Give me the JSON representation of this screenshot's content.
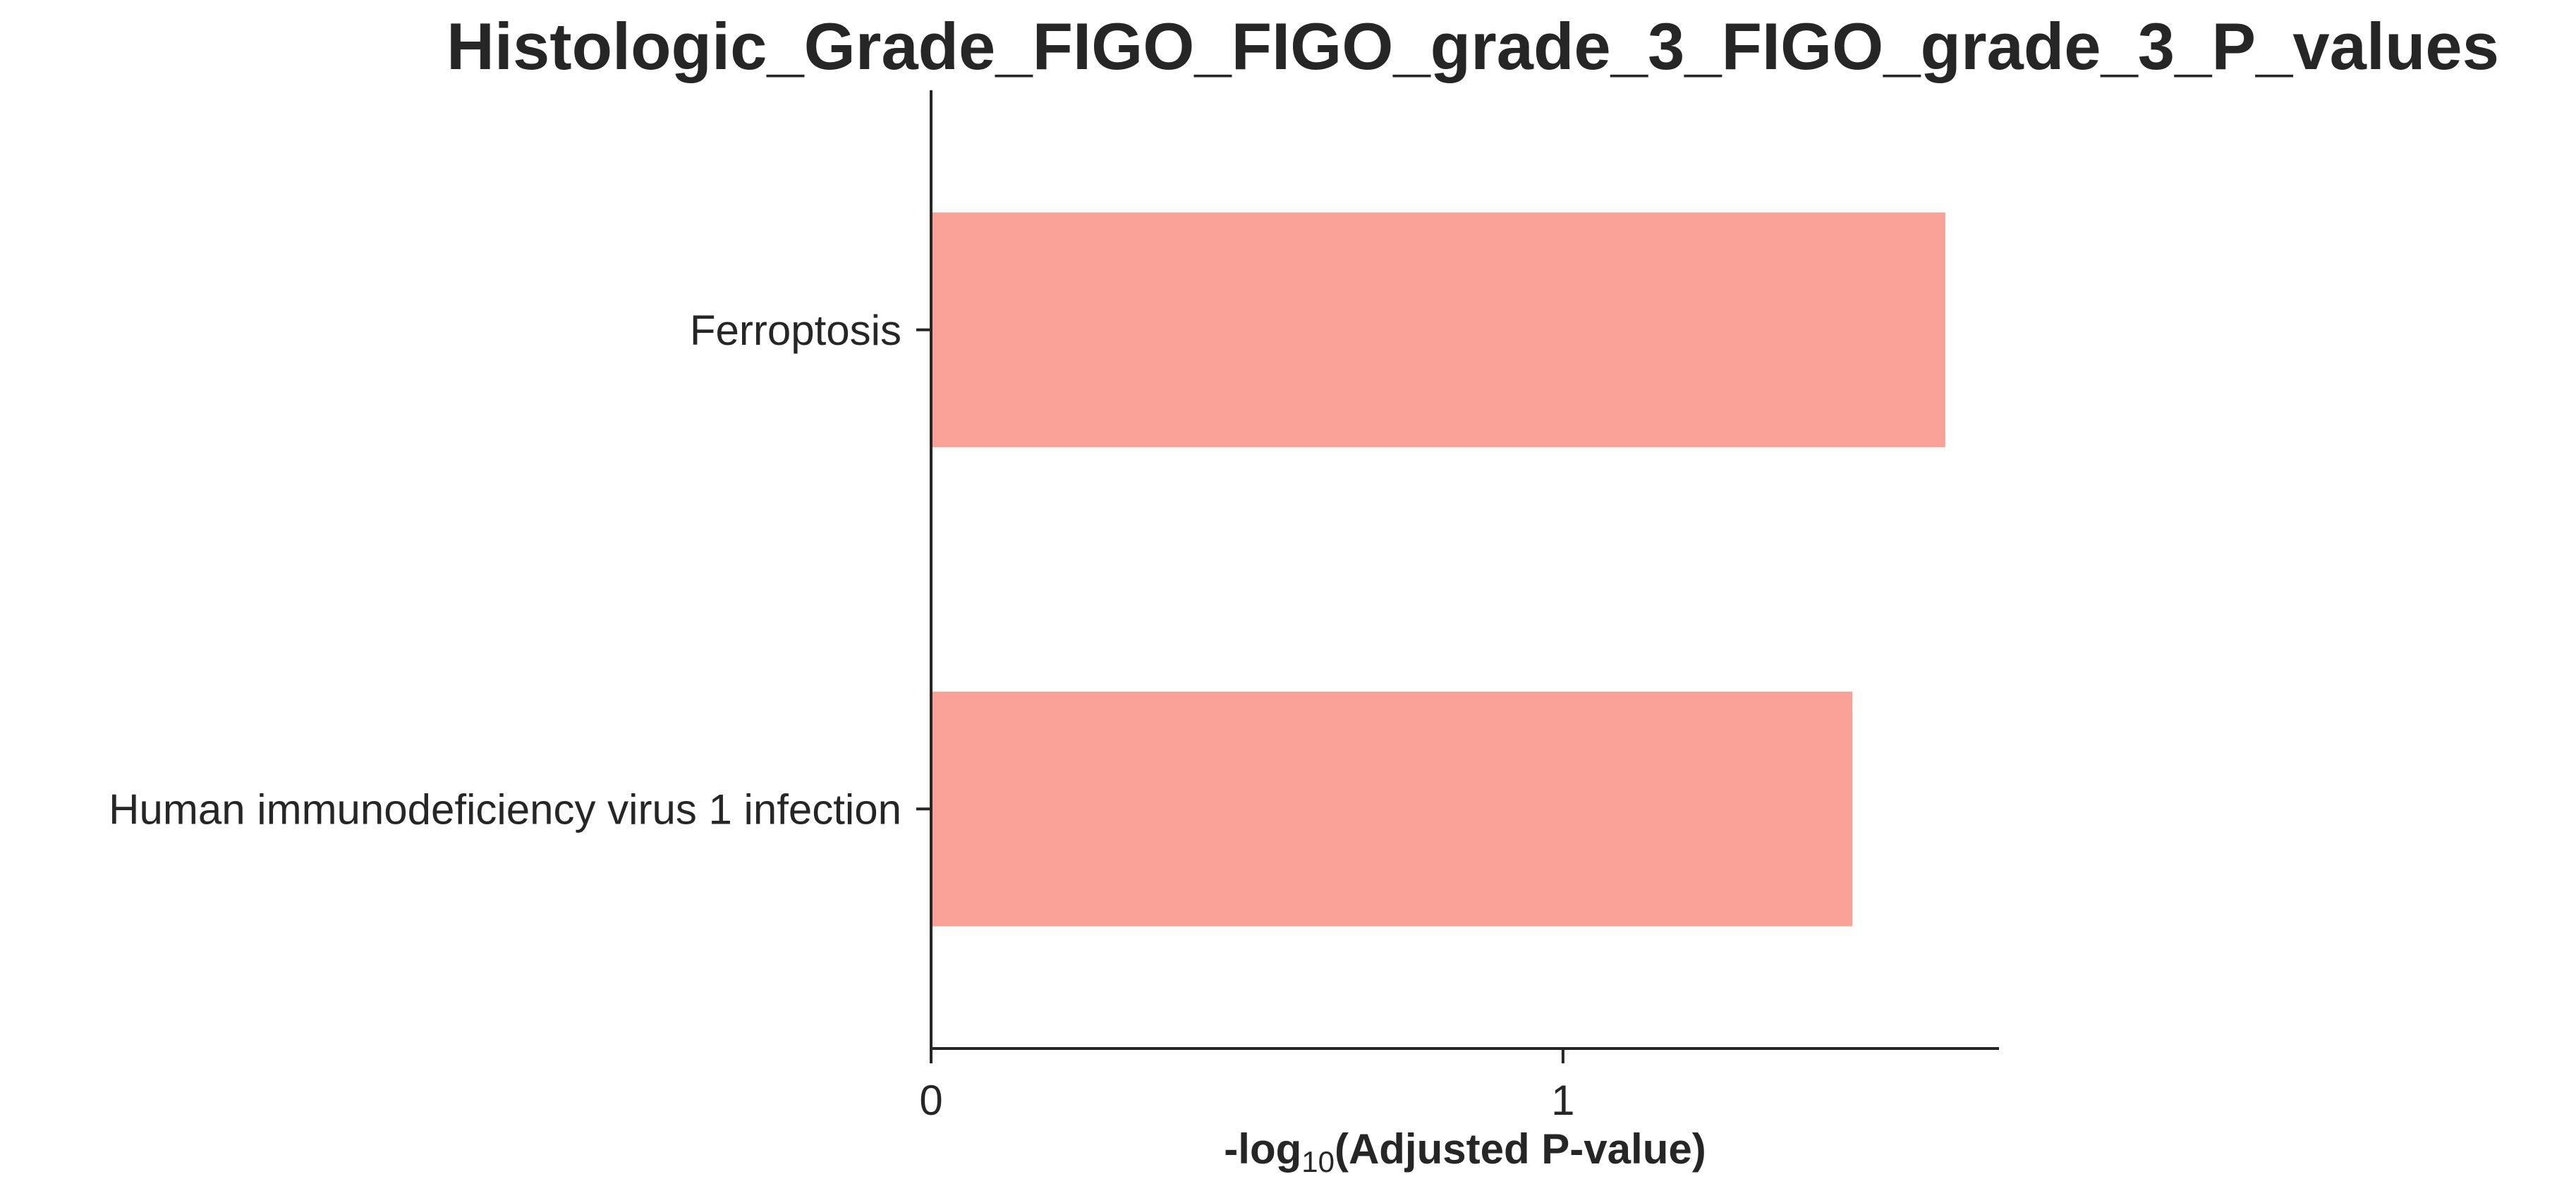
{
  "chart_data": {
    "type": "bar",
    "orientation": "horizontal",
    "title": "Histologic_Grade_FIGO_FIGO_grade_3_FIGO_grade_3_P_values",
    "xlabel_prefix": "-log",
    "xlabel_subscript": "10",
    "xlabel_suffix": "(Adjusted P-value)",
    "ylabel": "",
    "categories": [
      "Ferroptosis",
      "Human immunodeficiency virus 1 infection"
    ],
    "values": [
      1.605,
      1.458
    ],
    "xlim": [
      0,
      1.69
    ],
    "xticks": [
      0,
      1
    ],
    "bar_color": "#f9a197",
    "grid": false,
    "legend": "none"
  }
}
